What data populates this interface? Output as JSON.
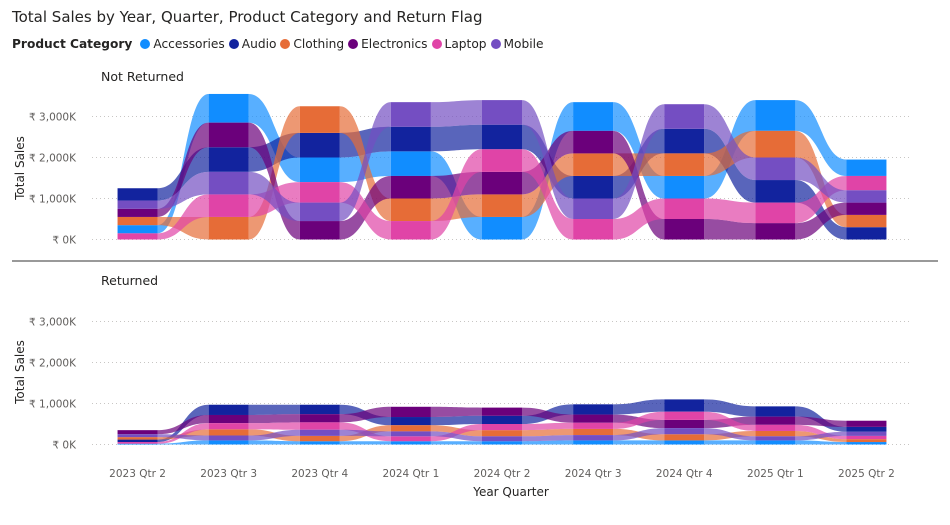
{
  "chart_data": {
    "type": "ribbon",
    "title": "Total Sales by Year, Quarter, Product Category and Return Flag",
    "legend_title": "Product Category",
    "legend_position": "top-left",
    "xlabel": "Year Quarter",
    "ylabel": "Total Sales",
    "categories": [
      "2023 Qtr 2",
      "2023 Qtr 3",
      "2023 Qtr 4",
      "2024 Qtr 1",
      "2024 Qtr 2",
      "2024 Qtr 3",
      "2024 Qtr 4",
      "2025 Qtr 1",
      "2025 Qtr 2"
    ],
    "y_ticks": [
      "₹ 0K",
      "₹ 1,000K",
      "₹ 2,000K",
      "₹ 3,000K"
    ],
    "y_tick_values": [
      0,
      1000,
      2000,
      3000
    ],
    "ylim": [
      0,
      3300
    ],
    "grid": true,
    "series_colors": {
      "Accessories": "#118DFF",
      "Audio": "#12239E",
      "Clothing": "#E66C37",
      "Electronics": "#6B007B",
      "Laptop": "#E044A7",
      "Mobile": "#744EC2"
    },
    "panels": [
      {
        "title": "Not Returned",
        "series": [
          {
            "name": "Accessories",
            "values": [
              200,
              700,
              600,
              600,
              550,
              700,
              550,
              750,
              400
            ]
          },
          {
            "name": "Audio",
            "values": [
              300,
              600,
              600,
              600,
              600,
              550,
              600,
              550,
              300
            ]
          },
          {
            "name": "Clothing",
            "values": [
              200,
              550,
              650,
              550,
              550,
              550,
              550,
              650,
              300
            ]
          },
          {
            "name": "Electronics",
            "values": [
              200,
              600,
              450,
              550,
              550,
              550,
              500,
              400,
              300
            ]
          },
          {
            "name": "Laptop",
            "values": [
              150,
              550,
              500,
              450,
              550,
              500,
              500,
              500,
              350
            ]
          },
          {
            "name": "Mobile",
            "values": [
              200,
              550,
              450,
              600,
              600,
              500,
              600,
              550,
              300
            ]
          }
        ]
      },
      {
        "title": "Returned",
        "series": [
          {
            "name": "Accessories",
            "values": [
              20,
              100,
              80,
              80,
              80,
              100,
              100,
              100,
              60
            ]
          },
          {
            "name": "Audio",
            "values": [
              60,
              250,
              230,
              200,
              200,
              250,
              300,
              250,
              120
            ]
          },
          {
            "name": "Clothing",
            "values": [
              60,
              150,
              130,
              150,
              150,
              150,
              150,
              130,
              70
            ]
          },
          {
            "name": "Electronics",
            "values": [
              100,
              200,
              200,
              250,
              200,
              200,
              200,
              200,
              150
            ]
          },
          {
            "name": "Laptop",
            "values": [
              40,
              150,
              180,
              120,
              150,
              150,
              200,
              150,
              80
            ]
          },
          {
            "name": "Mobile",
            "values": [
              70,
              120,
              150,
              120,
              120,
              130,
              150,
              100,
              100
            ]
          }
        ]
      }
    ]
  }
}
